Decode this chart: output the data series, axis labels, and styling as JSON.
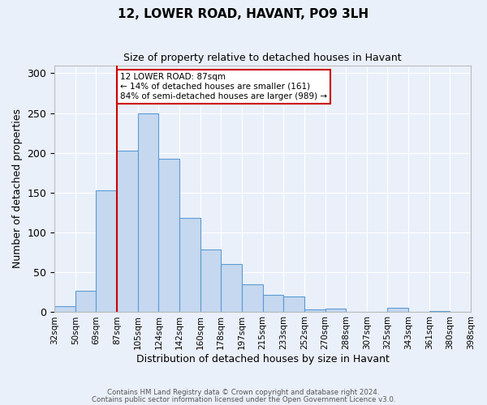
{
  "title": "12, LOWER ROAD, HAVANT, PO9 3LH",
  "subtitle": "Size of property relative to detached houses in Havant",
  "xlabel": "Distribution of detached houses by size in Havant",
  "ylabel": "Number of detached properties",
  "bin_labels": [
    "32sqm",
    "50sqm",
    "69sqm",
    "87sqm",
    "105sqm",
    "124sqm",
    "142sqm",
    "160sqm",
    "178sqm",
    "197sqm",
    "215sqm",
    "233sqm",
    "252sqm",
    "270sqm",
    "288sqm",
    "307sqm",
    "325sqm",
    "343sqm",
    "361sqm",
    "380sqm",
    "398sqm"
  ],
  "bar_heights": [
    7,
    27,
    153,
    203,
    250,
    192,
    118,
    79,
    60,
    35,
    22,
    19,
    3,
    4,
    0,
    0,
    5,
    0,
    1,
    0
  ],
  "bar_face_color": "#c5d8ef",
  "bar_edge_color": "#5b9bd5",
  "vline_index": 3,
  "vline_color": "#cc0000",
  "annotation_text": "12 LOWER ROAD: 87sqm\n← 14% of detached houses are smaller (161)\n84% of semi-detached houses are larger (989) →",
  "annotation_box_color": "#ffffff",
  "annotation_box_edge": "#cc0000",
  "ylim": [
    0,
    310
  ],
  "yticks": [
    0,
    50,
    100,
    150,
    200,
    250,
    300
  ],
  "bg_color": "#eaf0f9",
  "footer_line1": "Contains HM Land Registry data © Crown copyright and database right 2024.",
  "footer_line2": "Contains public sector information licensed under the Open Government Licence v3.0."
}
